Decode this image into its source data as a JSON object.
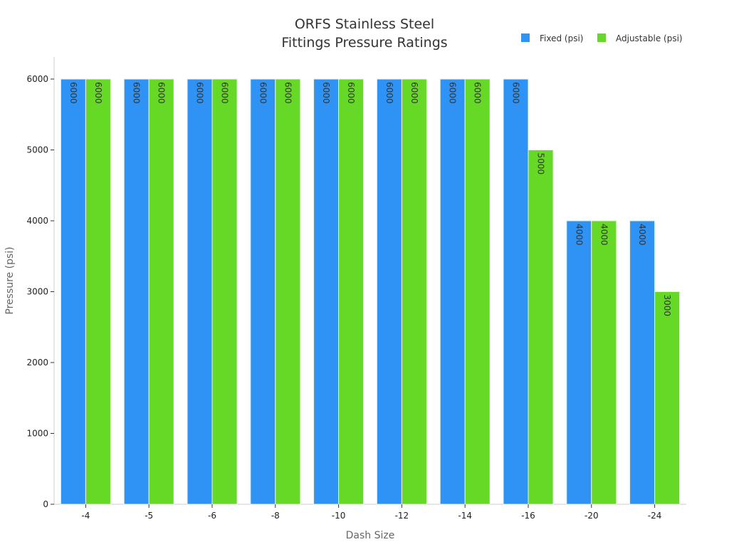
{
  "chart_data": {
    "type": "bar",
    "title": [
      "ORFS Stainless Steel",
      "Fittings Pressure Ratings"
    ],
    "xlabel": "Dash Size",
    "ylabel": "Pressure (psi)",
    "categories": [
      "-4",
      "-5",
      "-6",
      "-8",
      "-10",
      "-12",
      "-14",
      "-16",
      "-20",
      "-24"
    ],
    "series": [
      {
        "name": "Fixed (psi)",
        "color": "#2e93f5",
        "values": [
          6000,
          6000,
          6000,
          6000,
          6000,
          6000,
          6000,
          6000,
          4000,
          4000
        ]
      },
      {
        "name": "Adjustable (psi)",
        "color": "#66d926",
        "values": [
          6000,
          6000,
          6000,
          6000,
          6000,
          6000,
          6000,
          5000,
          4000,
          3000
        ]
      }
    ],
    "ylim": [
      0,
      6300
    ],
    "yticks": [
      0,
      1000,
      2000,
      3000,
      4000,
      5000,
      6000
    ],
    "grid": false,
    "legend": "top-right",
    "data_labels": true
  }
}
